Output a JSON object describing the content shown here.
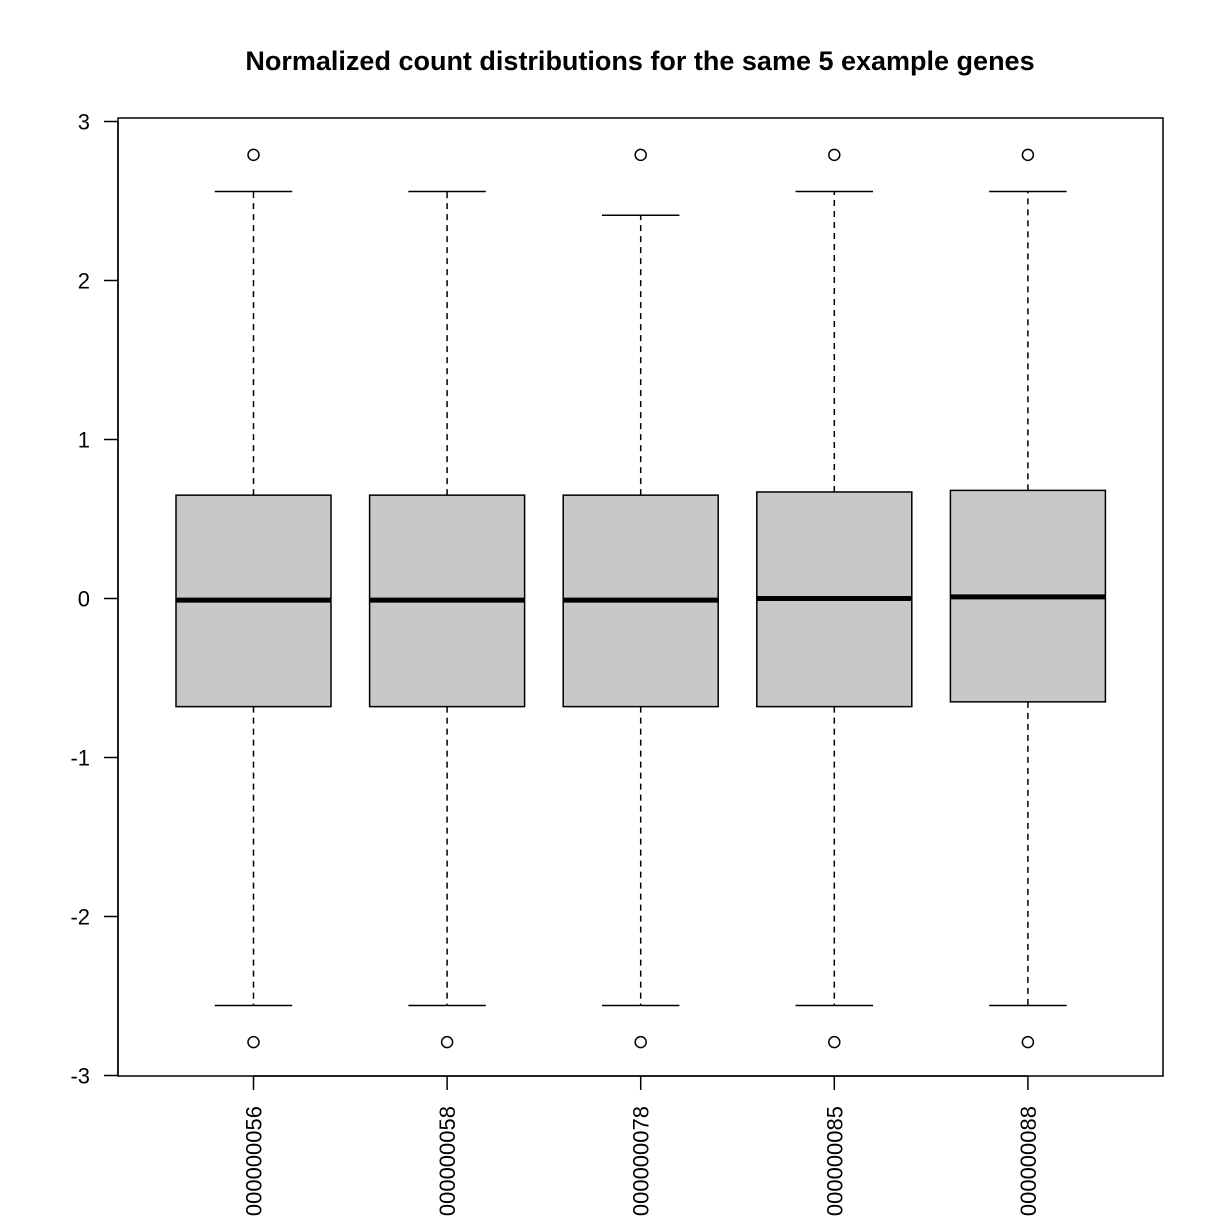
{
  "chart_data": {
    "type": "boxplot",
    "title": "Normalized count distributions for the same 5 example genes",
    "xlabel": "",
    "ylabel": "",
    "ylim": [
      -3,
      3
    ],
    "yticks": [
      "-3",
      "-2",
      "-1",
      "0",
      "1",
      "2",
      "3"
    ],
    "categories": [
      "000000056",
      "000000058",
      "000000078",
      "000000085",
      "000000088"
    ],
    "boxes": [
      {
        "whisker_low": -2.56,
        "q1": -0.68,
        "median": -0.01,
        "q3": 0.65,
        "whisker_high": 2.56,
        "outliers": [
          -2.79,
          2.79
        ]
      },
      {
        "whisker_low": -2.56,
        "q1": -0.68,
        "median": -0.01,
        "q3": 0.65,
        "whisker_high": 2.56,
        "outliers": [
          -2.79
        ]
      },
      {
        "whisker_low": -2.56,
        "q1": -0.68,
        "median": -0.01,
        "q3": 0.65,
        "whisker_high": 2.41,
        "outliers": [
          -2.79,
          2.79
        ]
      },
      {
        "whisker_low": -2.56,
        "q1": -0.68,
        "median": 0.0,
        "q3": 0.67,
        "whisker_high": 2.56,
        "outliers": [
          -2.79,
          2.79
        ]
      },
      {
        "whisker_low": -2.56,
        "q1": -0.65,
        "median": 0.01,
        "q3": 0.68,
        "whisker_high": 2.56,
        "outliers": [
          -2.79,
          2.79
        ]
      }
    ],
    "box_fill": "#c8c8c8",
    "grid": false,
    "legend": "none"
  }
}
